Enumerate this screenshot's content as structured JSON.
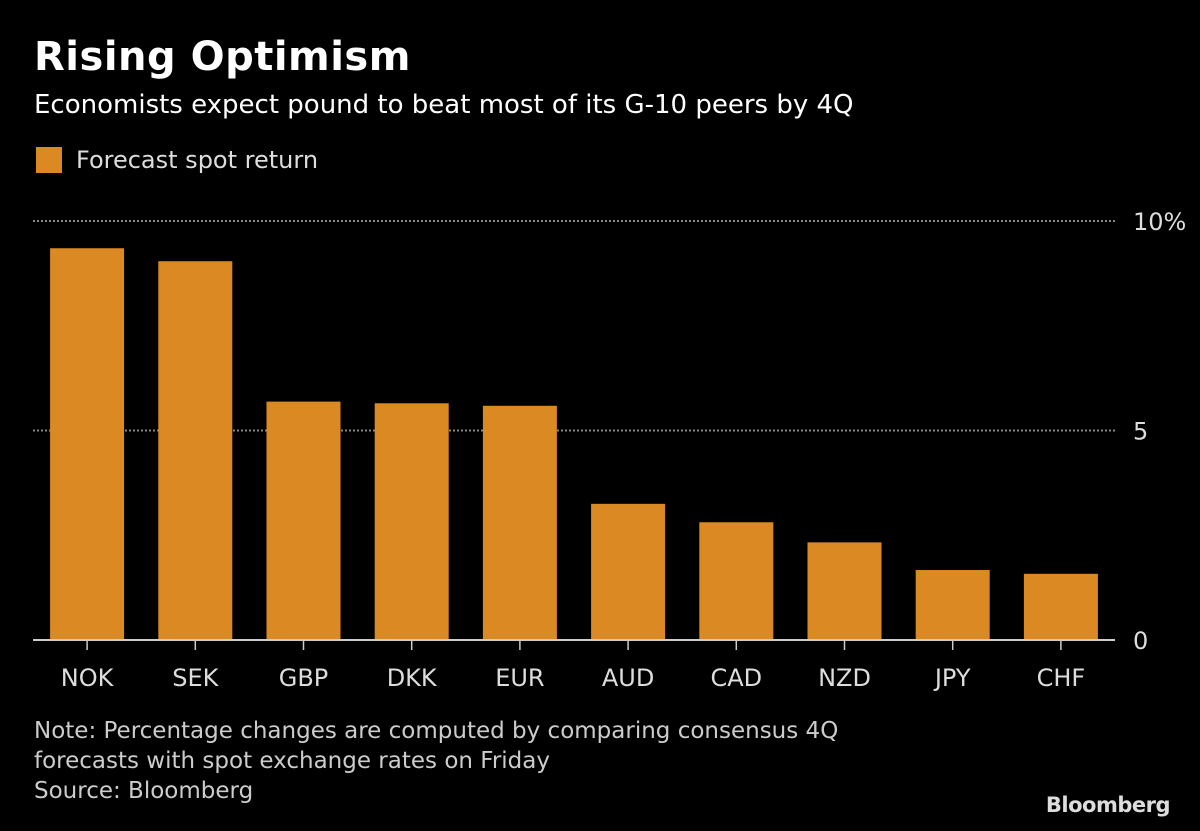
{
  "title": "Rising Optimism",
  "subtitle": "Economists expect pound to beat most of its G-10 peers by 4Q",
  "note_lines": [
    "Note: Percentage changes are computed by comparing consensus 4Q",
    "forecasts with spot exchange rates on Friday",
    "Source: Bloomberg"
  ],
  "logo": "Bloomberg",
  "colors": {
    "bar": "#DB8A23",
    "background": "#000000",
    "grid": "#888888"
  },
  "chart_data": {
    "type": "bar",
    "title": "Rising Optimism",
    "subtitle": "Economists expect pound to beat most of its G-10 peers by 4Q",
    "legend": {
      "position": "top-left",
      "entries": [
        "Forecast spot return"
      ]
    },
    "categories": [
      "NOK",
      "SEK",
      "GBP",
      "DKK",
      "EUR",
      "AUD",
      "CAD",
      "NZD",
      "JPY",
      "CHF"
    ],
    "series": [
      {
        "name": "Forecast spot return",
        "values": [
          9.35,
          9.04,
          5.69,
          5.65,
          5.59,
          3.25,
          2.81,
          2.33,
          1.67,
          1.58
        ]
      }
    ],
    "ylim": [
      0,
      10
    ],
    "yticks": [
      0,
      5,
      10
    ],
    "ytick_labels": [
      "0",
      "5",
      "10%"
    ],
    "yaxis_position": "right",
    "grid": true,
    "xlabel": "",
    "ylabel": ""
  }
}
